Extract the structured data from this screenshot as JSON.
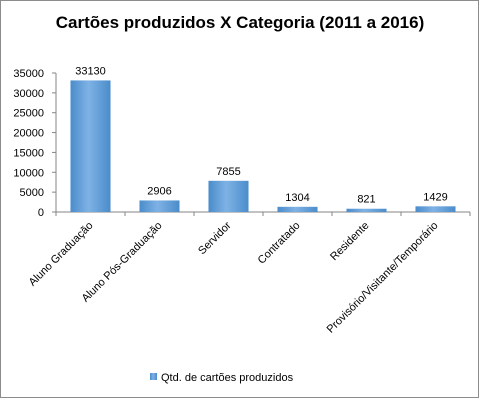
{
  "chart_data": {
    "type": "bar",
    "title": "Cartões produzidos X Categoria (2011 a 2016)",
    "xlabel": "",
    "ylabel": "",
    "categories": [
      "Aluno Graduação",
      "Aluno Pós-Graduação",
      "Servidor",
      "Contratado",
      "Residente",
      "Provisório/Visitante/Temporário"
    ],
    "series": [
      {
        "name": "Qtd. de cartões produzidos",
        "values": [
          33130,
          2906,
          7855,
          1304,
          821,
          1429
        ],
        "color": "#5b9bd5"
      }
    ],
    "data_labels": [
      "33130",
      "2906",
      "7855",
      "1304",
      "821",
      "1429"
    ],
    "ylim": [
      0,
      35000
    ],
    "yticks": [
      "0",
      "5000",
      "10000",
      "15000",
      "20000",
      "25000",
      "30000",
      "35000"
    ],
    "grid": false,
    "legend": "bottom"
  }
}
